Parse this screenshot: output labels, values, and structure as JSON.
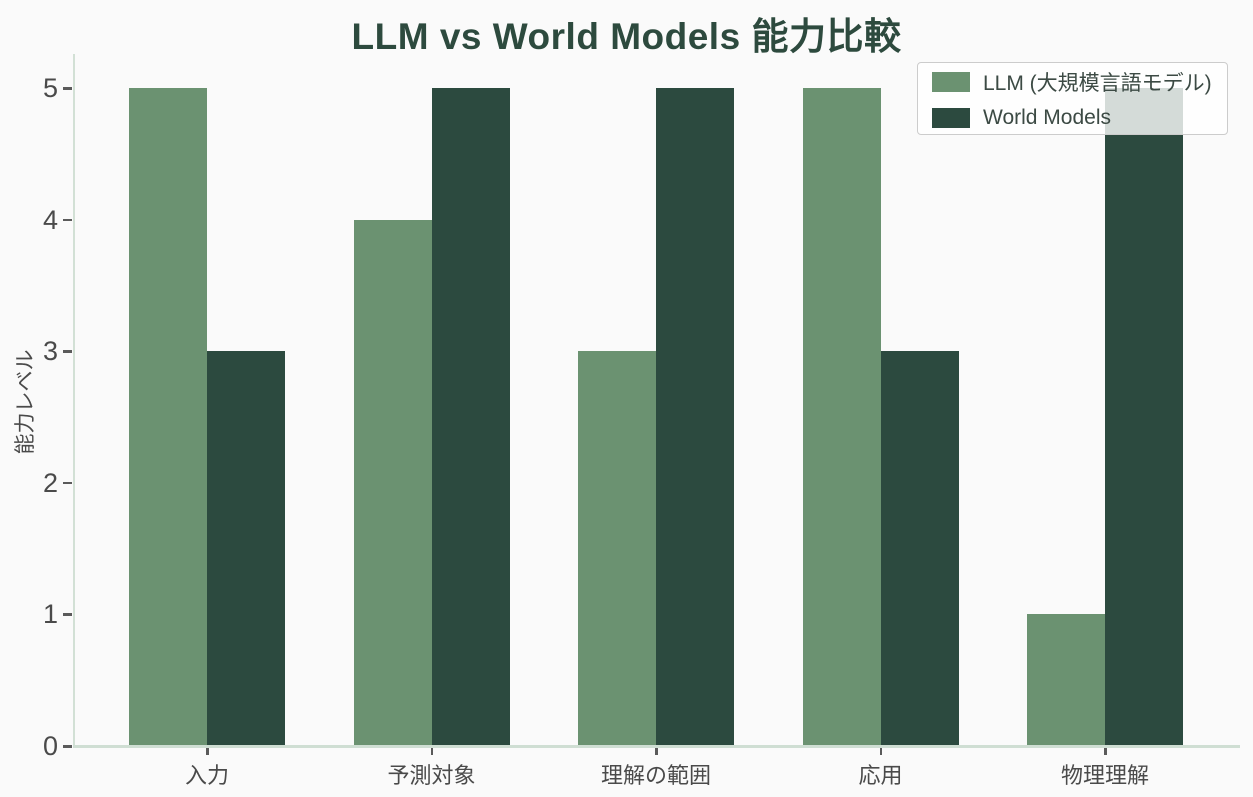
{
  "title": "LLM vs World Models 能力比較",
  "colors": {
    "background": "#FAFAFA",
    "title_text": "#2D4A3E",
    "llm_bar": "#6B9271",
    "world_models_bar": "#2C4A3F",
    "axis_spine": "#D2E0D5",
    "tick_mark": "#5A5A5A",
    "tick_label": "#4A4A4A",
    "legend_border": "#CCCCCC"
  },
  "chart_data": {
    "type": "bar",
    "title": "LLM vs World Models 能力比較",
    "xlabel": "",
    "ylabel": "能力レベル",
    "categories": [
      "入力",
      "予測対象",
      "理解の範囲",
      "応用",
      "物理理解"
    ],
    "series": [
      {
        "key": "llm",
        "name": "LLM (大規模言語モデル)",
        "color": "#6B9271",
        "values": [
          5,
          4,
          3,
          5,
          1
        ]
      },
      {
        "key": "world-models",
        "name": "World Models",
        "color": "#2C4A3F",
        "values": [
          3,
          5,
          5,
          3,
          5
        ]
      }
    ],
    "yticks": [
      0,
      1,
      2,
      3,
      4,
      5
    ],
    "ylim": [
      0,
      5.25
    ],
    "grid": false,
    "legend_position": "upper right"
  },
  "legend": {
    "items": [
      {
        "label": "LLM (大規模言語モデル)",
        "color": "#6B9271"
      },
      {
        "label": "World Models",
        "color": "#2C4A3F"
      }
    ]
  }
}
